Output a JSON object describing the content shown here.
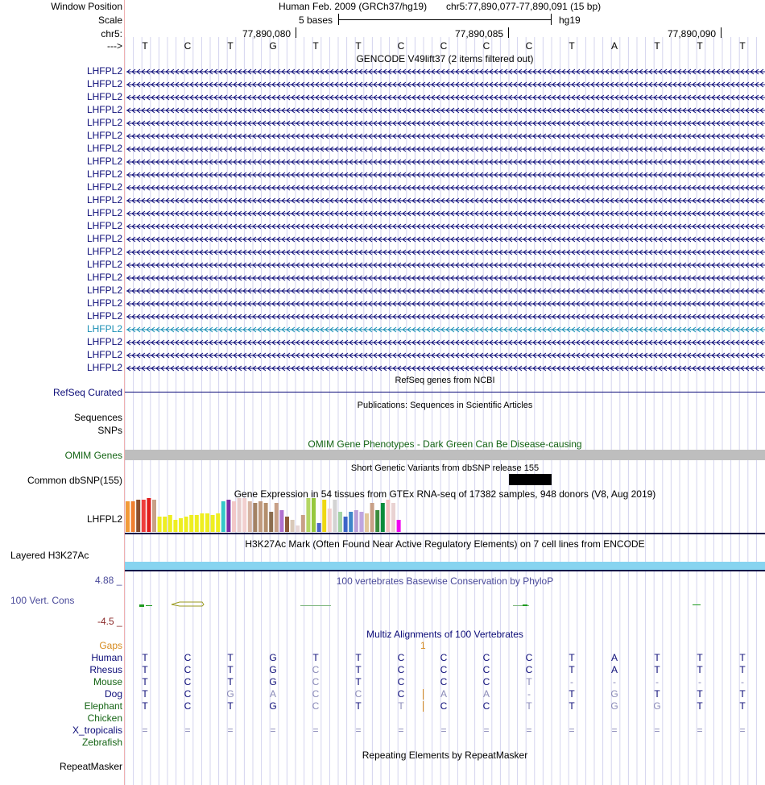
{
  "header": {
    "window_position_label": "Window Position",
    "assembly": "Human Feb. 2009 (GRCh37/hg19)",
    "position": "chr5:77,890,077-77,890,091 (15 bp)",
    "scale_label": "Scale",
    "scale_text": "5 bases",
    "db": "hg19",
    "chrom_label": "chr5:",
    "coord_ticks": [
      "77,890,080",
      "77,890,085",
      "77,890,090"
    ],
    "strand_label": "--->"
  },
  "reference_bases": [
    "T",
    "C",
    "T",
    "G",
    "T",
    "T",
    "C",
    "C",
    "C",
    "C",
    "T",
    "A",
    "T",
    "T",
    "T"
  ],
  "gencode": {
    "title": "GENCODE V49lift37 (2 items filtered out)",
    "gene_labels": [
      "LHFPL2",
      "LHFPL2",
      "LHFPL2",
      "LHFPL2",
      "LHFPL2",
      "LHFPL2",
      "LHFPL2",
      "LHFPL2",
      "LHFPL2",
      "LHFPL2",
      "LHFPL2",
      "LHFPL2",
      "LHFPL2",
      "LHFPL2",
      "LHFPL2",
      "LHFPL2",
      "LHFPL2",
      "LHFPL2",
      "LHFPL2",
      "LHFPL2",
      "LHFPL2",
      "LHFPL2",
      "LHFPL2",
      "LHFPL2"
    ],
    "highlighted_index": 20,
    "colors": {
      "gene": "#0c0c78",
      "highlight": "#1a8fb5"
    }
  },
  "refseq": {
    "title": "RefSeq genes from NCBI",
    "label": "RefSeq Curated"
  },
  "publications": {
    "title": "Publications: Sequences in Scientific Articles",
    "label_seq": "Sequences",
    "label_snp": "SNPs"
  },
  "omim": {
    "title": "OMIM Gene Phenotypes - Dark Green Can Be Disease-causing",
    "label": "OMIM Genes"
  },
  "dbsnp": {
    "title": "Short Genetic Variants from dbSNP release 155",
    "label": "Common dbSNP(155)"
  },
  "gtex": {
    "title": "Gene Expression in 54 tissues from GTEx RNA-seq of 17382 samples, 948 donors (V8, Aug 2019)",
    "label": "LHFPL2",
    "bars": [
      {
        "v": 0.9,
        "c": "#f29a38"
      },
      {
        "v": 0.9,
        "c": "#f07f30"
      },
      {
        "v": 0.95,
        "c": "#8b4f2e"
      },
      {
        "v": 0.95,
        "c": "#ee3c3c"
      },
      {
        "v": 1.0,
        "c": "#e01b1b"
      },
      {
        "v": 0.95,
        "c": "#c8a087"
      },
      {
        "v": 0.45,
        "c": "#eeee20"
      },
      {
        "v": 0.45,
        "c": "#eeee20"
      },
      {
        "v": 0.5,
        "c": "#eeee20"
      },
      {
        "v": 0.35,
        "c": "#eeee20"
      },
      {
        "v": 0.4,
        "c": "#eeee20"
      },
      {
        "v": 0.45,
        "c": "#eeee20"
      },
      {
        "v": 0.5,
        "c": "#eeee20"
      },
      {
        "v": 0.5,
        "c": "#eeee20"
      },
      {
        "v": 0.55,
        "c": "#eeee20"
      },
      {
        "v": 0.55,
        "c": "#eeee20"
      },
      {
        "v": 0.5,
        "c": "#eeee20"
      },
      {
        "v": 0.55,
        "c": "#eeee20"
      },
      {
        "v": 0.9,
        "c": "#34c8c8"
      },
      {
        "v": 0.95,
        "c": "#7b2fa8"
      },
      {
        "v": 0.9,
        "c": "#f2c8c8"
      },
      {
        "v": 1.0,
        "c": "#e7cccc"
      },
      {
        "v": 1.0,
        "c": "#f2d0d0"
      },
      {
        "v": 0.9,
        "c": "#d7b5a4"
      },
      {
        "v": 0.85,
        "c": "#a38264"
      },
      {
        "v": 0.9,
        "c": "#c09b80"
      },
      {
        "v": 0.85,
        "c": "#b48f6d"
      },
      {
        "v": 0.6,
        "c": "#8b6d4f"
      },
      {
        "v": 0.85,
        "c": "#c8a087"
      },
      {
        "v": 0.65,
        "c": "#b070d0"
      },
      {
        "v": 0.45,
        "c": "#8e5a3a"
      },
      {
        "v": 0.35,
        "c": "#d9c8b8"
      },
      {
        "v": 0.2,
        "c": "#e7d6d6"
      },
      {
        "v": 0.5,
        "c": "#c8a087"
      },
      {
        "v": 1.0,
        "c": "#b4d664"
      },
      {
        "v": 1.0,
        "c": "#96c83c"
      },
      {
        "v": 0.25,
        "c": "#4b64c8"
      },
      {
        "v": 0.95,
        "c": "#eed814"
      },
      {
        "v": 0.7,
        "c": "#f2d0d0"
      },
      {
        "v": 0.95,
        "c": "#d3d3d3"
      },
      {
        "v": 0.6,
        "c": "#a3d3a3"
      },
      {
        "v": 0.45,
        "c": "#3c64c8"
      },
      {
        "v": 0.6,
        "c": "#3e86c8"
      },
      {
        "v": 0.65,
        "c": "#b89ed8"
      },
      {
        "v": 0.6,
        "c": "#bfa5e0"
      },
      {
        "v": 0.55,
        "c": "#e2c79a"
      },
      {
        "v": 0.85,
        "c": "#c8a087"
      },
      {
        "v": 0.65,
        "c": "#3c8c3c"
      },
      {
        "v": 0.85,
        "c": "#0a8c3c"
      },
      {
        "v": 0.95,
        "c": "#f2c0c0"
      },
      {
        "v": 0.85,
        "c": "#e9d2d2"
      },
      {
        "v": 0.35,
        "c": "#f000f0"
      }
    ]
  },
  "h3k27ac": {
    "title": "H3K27Ac Mark (Often Found Near Active Regulatory Elements) on 7 cell lines from ENCODE",
    "label": "Layered H3K27Ac",
    "color": "#87d4f0"
  },
  "phylop": {
    "title": "100 vertebrates Basewise Conservation by PhyloP",
    "label": "100 Vert. Cons",
    "max": "4.88 _",
    "min": "-4.5 _"
  },
  "multiz": {
    "title": "Multiz Alignments of 100 Vertebrates",
    "gaps_label": "Gaps",
    "gap_count": "1",
    "species": [
      {
        "name": "Human",
        "color": "#0c0c78",
        "bases": [
          "T",
          "C",
          "T",
          "G",
          "T",
          "T",
          "C",
          "C",
          "C",
          "C",
          "T",
          "A",
          "T",
          "T",
          "T"
        ],
        "faint": []
      },
      {
        "name": "Rhesus",
        "color": "#0c0c78",
        "bases": [
          "T",
          "C",
          "T",
          "G",
          "C",
          "T",
          "C",
          "C",
          "C",
          "C",
          "T",
          "A",
          "T",
          "T",
          "T"
        ],
        "faint": [
          4
        ]
      },
      {
        "name": "Mouse",
        "color": "#146414",
        "bases": [
          "T",
          "C",
          "T",
          "G",
          "C",
          "T",
          "C",
          "C",
          "C",
          "T",
          "-",
          "-",
          "-",
          "-",
          "-"
        ],
        "faint": [
          4,
          9,
          10,
          11,
          12,
          13,
          14
        ]
      },
      {
        "name": "Dog",
        "color": "#0c0c78",
        "bases": [
          "T",
          "C",
          "G",
          "A",
          "C",
          "C",
          "C",
          "A",
          "A",
          "-",
          "T",
          "G",
          "T",
          "T",
          "T"
        ],
        "faint": [
          2,
          3,
          4,
          5,
          7,
          8,
          9,
          11
        ]
      },
      {
        "name": "Elephant",
        "color": "#146414",
        "bases": [
          "T",
          "C",
          "T",
          "G",
          "C",
          "T",
          "T",
          "C",
          "C",
          "T",
          "T",
          "G",
          "G",
          "T",
          "T"
        ],
        "faint": [
          4,
          6,
          9,
          11,
          12
        ]
      },
      {
        "name": "Chicken",
        "color": "#146414",
        "bases": [],
        "faint": []
      },
      {
        "name": "X_tropicalis",
        "color": "#0c0c78",
        "bases": [
          "=",
          "=",
          "=",
          "=",
          "=",
          "=",
          "=",
          "=",
          "=",
          "=",
          "=",
          "=",
          "=",
          "=",
          "="
        ],
        "faint": [
          0,
          1,
          2,
          3,
          4,
          5,
          6,
          7,
          8,
          9,
          10,
          11,
          12,
          13,
          14
        ]
      },
      {
        "name": "Zebrafish",
        "color": "#146414",
        "bases": [],
        "faint": []
      }
    ]
  },
  "repeatmasker": {
    "title": "Repeating Elements by RepeatMasker",
    "label": "RepeatMasker"
  }
}
